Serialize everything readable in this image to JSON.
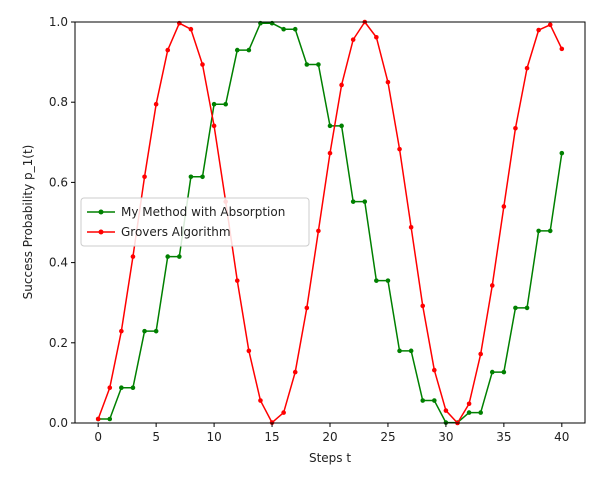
{
  "chart_data": {
    "type": "line",
    "xlabel": "Steps t",
    "ylabel": "Success Probability p_1(t)",
    "xlim": [
      -2,
      42
    ],
    "ylim": [
      0,
      1.0
    ],
    "xticks": [
      0,
      5,
      10,
      15,
      20,
      25,
      30,
      35,
      40
    ],
    "xtick_labels": [
      "0",
      "5",
      "10",
      "15",
      "20",
      "25",
      "30",
      "35",
      "40"
    ],
    "yticks": [
      0,
      0.2,
      0.4,
      0.6,
      0.8,
      1.0
    ],
    "ytick_labels": [
      "0.0",
      "0.2",
      "0.4",
      "0.6",
      "0.8",
      "1.0"
    ],
    "grid": false,
    "legend_position": "center-left",
    "x": [
      0,
      1,
      2,
      3,
      4,
      5,
      6,
      7,
      8,
      9,
      10,
      11,
      12,
      13,
      14,
      15,
      16,
      17,
      18,
      19,
      20,
      21,
      22,
      23,
      24,
      25,
      26,
      27,
      28,
      29,
      30,
      31,
      32,
      33,
      34,
      35,
      36,
      37,
      38,
      39,
      40
    ],
    "series": [
      {
        "name": "My Method with Absorption",
        "color": "#008000",
        "marker": "dot",
        "values": [
          0.01,
          0.01,
          0.088,
          0.088,
          0.229,
          0.229,
          0.415,
          0.415,
          0.614,
          0.614,
          0.795,
          0.795,
          0.93,
          0.93,
          0.997,
          0.997,
          0.982,
          0.982,
          0.894,
          0.894,
          0.741,
          0.741,
          0.552,
          0.552,
          0.355,
          0.355,
          0.18,
          0.18,
          0.056,
          0.056,
          0.001,
          0.001,
          0.026,
          0.026,
          0.127,
          0.127,
          0.287,
          0.287,
          0.479,
          0.479,
          0.673
        ]
      },
      {
        "name": "Grovers Algorithm",
        "color": "#ff0000",
        "marker": "dot",
        "values": [
          0.01,
          0.088,
          0.229,
          0.415,
          0.614,
          0.795,
          0.93,
          0.997,
          0.982,
          0.894,
          0.741,
          0.552,
          0.355,
          0.18,
          0.056,
          0.001,
          0.026,
          0.127,
          0.287,
          0.479,
          0.673,
          0.843,
          0.956,
          1.0,
          0.962,
          0.85,
          0.683,
          0.488,
          0.292,
          0.132,
          0.031,
          0.0,
          0.048,
          0.172,
          0.343,
          0.54,
          0.735,
          0.885,
          0.98,
          0.993,
          0.933
        ]
      }
    ]
  }
}
